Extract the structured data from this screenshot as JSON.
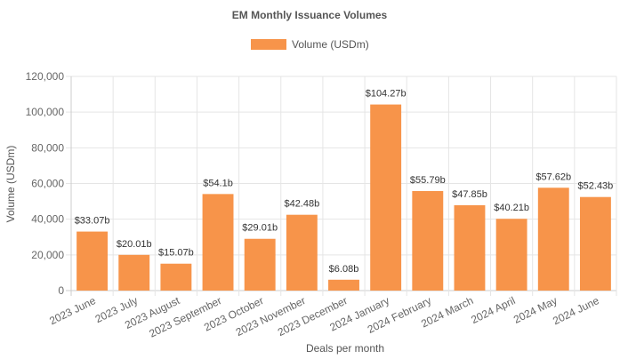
{
  "chart_data": {
    "type": "bar",
    "title": "EM Monthly Issuance Volumes",
    "xlabel": "Deals per month",
    "ylabel": "Volume (USDm)",
    "ylim": [
      0,
      120000
    ],
    "y_ticks": [
      "0",
      "20,000",
      "40,000",
      "60,000",
      "80,000",
      "100,000",
      "120,000"
    ],
    "grid": true,
    "legend_position": "top-center",
    "categories": [
      "2023 June",
      "2023 July",
      "2023 August",
      "2023 September",
      "2023 October",
      "2023 November",
      "2023 December",
      "2024 January",
      "2024 February",
      "2024 March",
      "2024 April",
      "2024 May",
      "2024 June"
    ],
    "series": [
      {
        "name": "Volume (USDm)",
        "color": "#f7944a",
        "values": [
          33070,
          20010,
          15070,
          54100,
          29010,
          42480,
          6080,
          104270,
          55790,
          47850,
          40210,
          57620,
          52430
        ],
        "labels": [
          "$33.07b",
          "$20.01b",
          "$15.07b",
          "$54.1b",
          "$29.01b",
          "$42.48b",
          "$6.08b",
          "$104.27b",
          "$55.79b",
          "$47.85b",
          "$40.21b",
          "$57.62b",
          "$52.43b"
        ]
      }
    ]
  }
}
